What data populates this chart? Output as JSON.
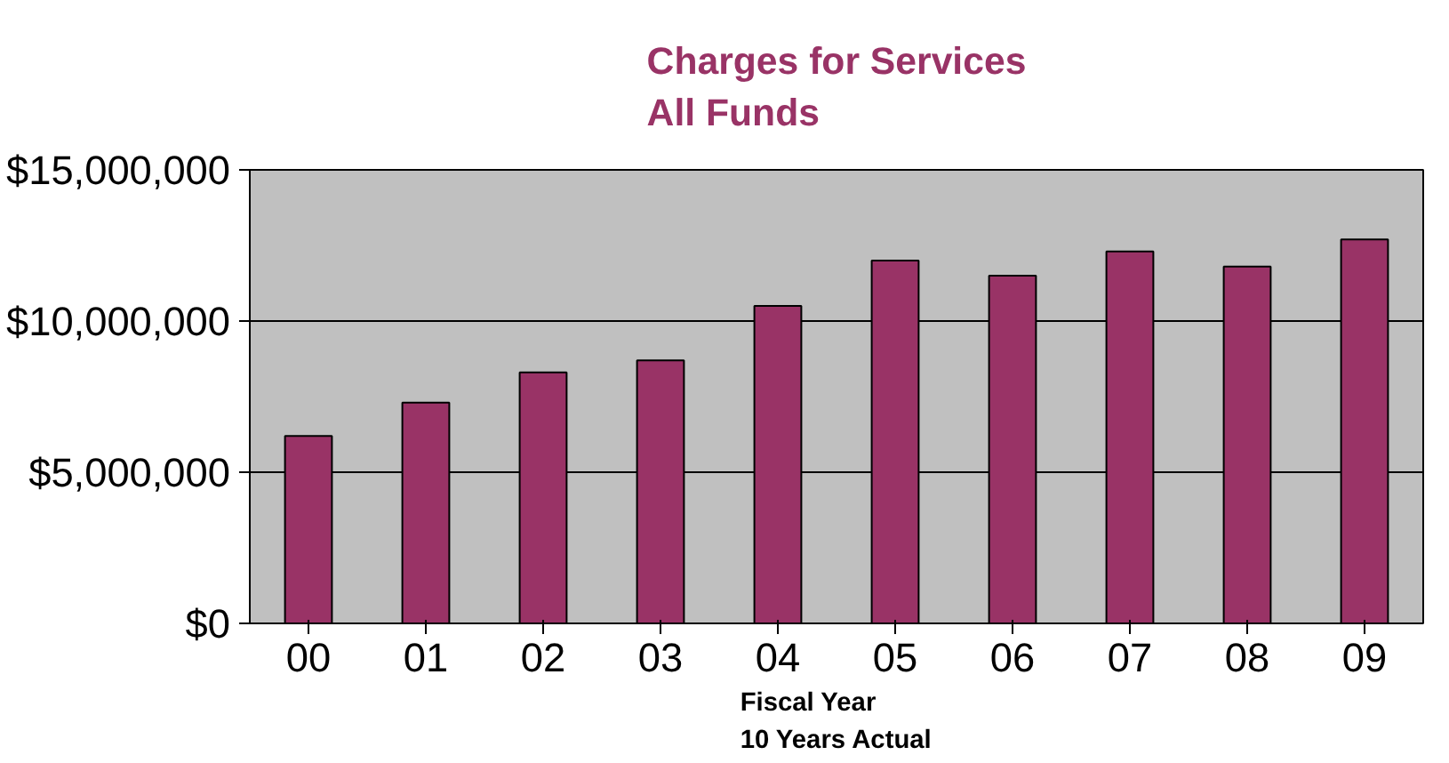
{
  "chart_data": {
    "type": "bar",
    "title": "Charges for Services\nAll Funds",
    "xlabel": "Fiscal Year\n10 Years Actual",
    "categories": [
      "00",
      "01",
      "02",
      "03",
      "04",
      "05",
      "06",
      "07",
      "08",
      "09"
    ],
    "values": [
      6200000,
      7300000,
      8300000,
      8700000,
      10500000,
      12000000,
      11500000,
      12300000,
      11800000,
      12700000
    ],
    "color": "#993366",
    "ylim": [
      0,
      15000000
    ],
    "yticks": [
      {
        "value": 0,
        "label": "$0"
      },
      {
        "value": 5000000,
        "label": "$5,000,000"
      },
      {
        "value": 10000000,
        "label": "$10,000,000"
      },
      {
        "value": 15000000,
        "label": "$15,000,000"
      }
    ],
    "grid": "y"
  }
}
